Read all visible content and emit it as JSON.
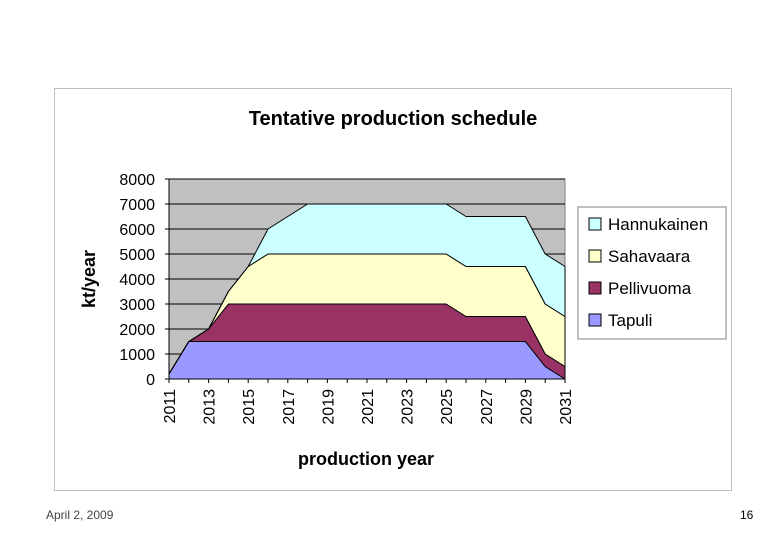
{
  "footer": {
    "date": "April 2, 2009",
    "page": "16"
  },
  "chart_data": {
    "type": "area",
    "stacked": true,
    "title": "Tentative production schedule",
    "xlabel": "production year",
    "ylabel": "kt/year",
    "ylim": [
      0,
      8000
    ],
    "yticks": [
      0,
      1000,
      2000,
      3000,
      4000,
      5000,
      6000,
      7000,
      8000
    ],
    "x": [
      2011,
      2012,
      2013,
      2014,
      2015,
      2016,
      2017,
      2018,
      2019,
      2020,
      2021,
      2022,
      2023,
      2024,
      2025,
      2026,
      2027,
      2028,
      2029,
      2030,
      2031
    ],
    "xtick_labels": [
      "2011",
      "2013",
      "2015",
      "2017",
      "2019",
      "2021",
      "2023",
      "2025",
      "2027",
      "2029",
      "2031"
    ],
    "legend_position": "right",
    "plot_background": "#c0c0c0",
    "series": [
      {
        "name": "Tapuli",
        "color": "#9999ff",
        "values": [
          200,
          1500,
          1500,
          1500,
          1500,
          1500,
          1500,
          1500,
          1500,
          1500,
          1500,
          1500,
          1500,
          1500,
          1500,
          1500,
          1500,
          1500,
          1500,
          500,
          0
        ]
      },
      {
        "name": "Pellivuoma",
        "color": "#993366",
        "values": [
          0,
          0,
          500,
          1500,
          1500,
          1500,
          1500,
          1500,
          1500,
          1500,
          1500,
          1500,
          1500,
          1500,
          1500,
          1000,
          1000,
          1000,
          1000,
          500,
          500
        ]
      },
      {
        "name": "Sahavaara",
        "color": "#ffffcc",
        "values": [
          0,
          0,
          0,
          500,
          1500,
          2000,
          2000,
          2000,
          2000,
          2000,
          2000,
          2000,
          2000,
          2000,
          2000,
          2000,
          2000,
          2000,
          2000,
          2000,
          2000
        ]
      },
      {
        "name": "Hannukainen",
        "color": "#ccffff",
        "values": [
          0,
          0,
          0,
          0,
          0,
          1000,
          1500,
          2000,
          2000,
          2000,
          2000,
          2000,
          2000,
          2000,
          2000,
          2000,
          2000,
          2000,
          2000,
          2000,
          2000
        ]
      }
    ]
  }
}
